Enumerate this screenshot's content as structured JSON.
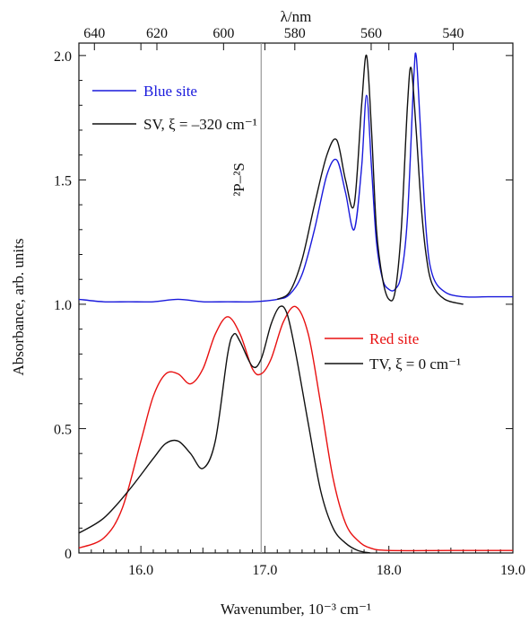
{
  "chart_data": {
    "type": "line",
    "xlabel": "Wavenumber, 10⁻³ cm⁻¹",
    "ylabel": "Absorbance, arb. units",
    "top_axis_label": "λ/nm",
    "xlim": [
      15.5,
      19.0
    ],
    "ylim": [
      0,
      2.05
    ],
    "x_ticks": [
      "16.0",
      "17.0",
      "18.0",
      "19.0"
    ],
    "x_tick_values": [
      16.0,
      17.0,
      18.0,
      19.0
    ],
    "y_ticks": [
      "0",
      "0.5",
      "1.0",
      "1.5",
      "2.0"
    ],
    "y_tick_values": [
      0,
      0.5,
      1.0,
      1.5,
      2.0
    ],
    "top_ticks": [
      "640",
      "620",
      "600",
      "580",
      "560",
      "540"
    ],
    "top_tick_values": [
      640,
      620,
      600,
      580,
      560,
      540
    ],
    "vline": {
      "x": 16.97,
      "label": "²P–²S",
      "color": "#999999"
    },
    "series": [
      {
        "name": "Blue site",
        "color": "#1a1adc",
        "x": [
          15.5,
          15.7,
          15.9,
          16.1,
          16.3,
          16.5,
          16.7,
          16.9,
          17.1,
          17.2,
          17.3,
          17.4,
          17.5,
          17.58,
          17.65,
          17.72,
          17.78,
          17.82,
          17.86,
          17.9,
          17.95,
          18.0,
          18.05,
          18.1,
          18.15,
          18.2,
          18.22,
          18.25,
          18.3,
          18.35,
          18.45,
          18.6,
          18.8,
          19.0
        ],
        "values": [
          1.02,
          1.01,
          1.01,
          1.01,
          1.02,
          1.01,
          1.01,
          1.01,
          1.02,
          1.04,
          1.12,
          1.3,
          1.52,
          1.58,
          1.45,
          1.3,
          1.55,
          1.84,
          1.55,
          1.25,
          1.1,
          1.06,
          1.06,
          1.12,
          1.35,
          1.9,
          2.0,
          1.75,
          1.3,
          1.12,
          1.05,
          1.03,
          1.03,
          1.03
        ]
      },
      {
        "name": "SV, ξ = –320 cm⁻¹",
        "color": "#111111",
        "x": [
          17.1,
          17.2,
          17.3,
          17.4,
          17.5,
          17.58,
          17.65,
          17.72,
          17.78,
          17.82,
          17.86,
          17.9,
          17.95,
          18.0,
          18.05,
          18.1,
          18.15,
          18.18,
          18.22,
          18.26,
          18.3,
          18.35,
          18.45,
          18.6
        ],
        "values": [
          1.02,
          1.05,
          1.18,
          1.4,
          1.6,
          1.66,
          1.5,
          1.4,
          1.8,
          2.0,
          1.7,
          1.3,
          1.1,
          1.02,
          1.05,
          1.3,
          1.8,
          1.95,
          1.7,
          1.4,
          1.2,
          1.08,
          1.02,
          1.0
        ]
      },
      {
        "name": "Red site",
        "color": "#e81010",
        "x": [
          15.5,
          15.7,
          15.85,
          16.0,
          16.1,
          16.2,
          16.3,
          16.4,
          16.5,
          16.6,
          16.7,
          16.8,
          16.9,
          16.97,
          17.05,
          17.15,
          17.25,
          17.35,
          17.45,
          17.55,
          17.65,
          17.75,
          17.85,
          18.0,
          18.5,
          19.0
        ],
        "values": [
          0.02,
          0.06,
          0.18,
          0.45,
          0.63,
          0.72,
          0.72,
          0.68,
          0.74,
          0.88,
          0.95,
          0.88,
          0.74,
          0.72,
          0.78,
          0.93,
          0.99,
          0.88,
          0.6,
          0.3,
          0.12,
          0.05,
          0.02,
          0.01,
          0.01,
          0.01
        ]
      },
      {
        "name": "TV,  ξ = 0 cm⁻¹",
        "color": "#111111",
        "x": [
          15.5,
          15.7,
          15.9,
          16.1,
          16.2,
          16.3,
          16.4,
          16.5,
          16.6,
          16.7,
          16.75,
          16.8,
          16.9,
          16.97,
          17.05,
          17.12,
          17.18,
          17.25,
          17.35,
          17.45,
          17.55,
          17.65,
          17.75,
          17.85
        ],
        "values": [
          0.08,
          0.14,
          0.25,
          0.38,
          0.44,
          0.45,
          0.4,
          0.34,
          0.45,
          0.8,
          0.88,
          0.85,
          0.75,
          0.78,
          0.92,
          0.99,
          0.96,
          0.8,
          0.52,
          0.25,
          0.1,
          0.04,
          0.01,
          0.0
        ]
      }
    ]
  }
}
